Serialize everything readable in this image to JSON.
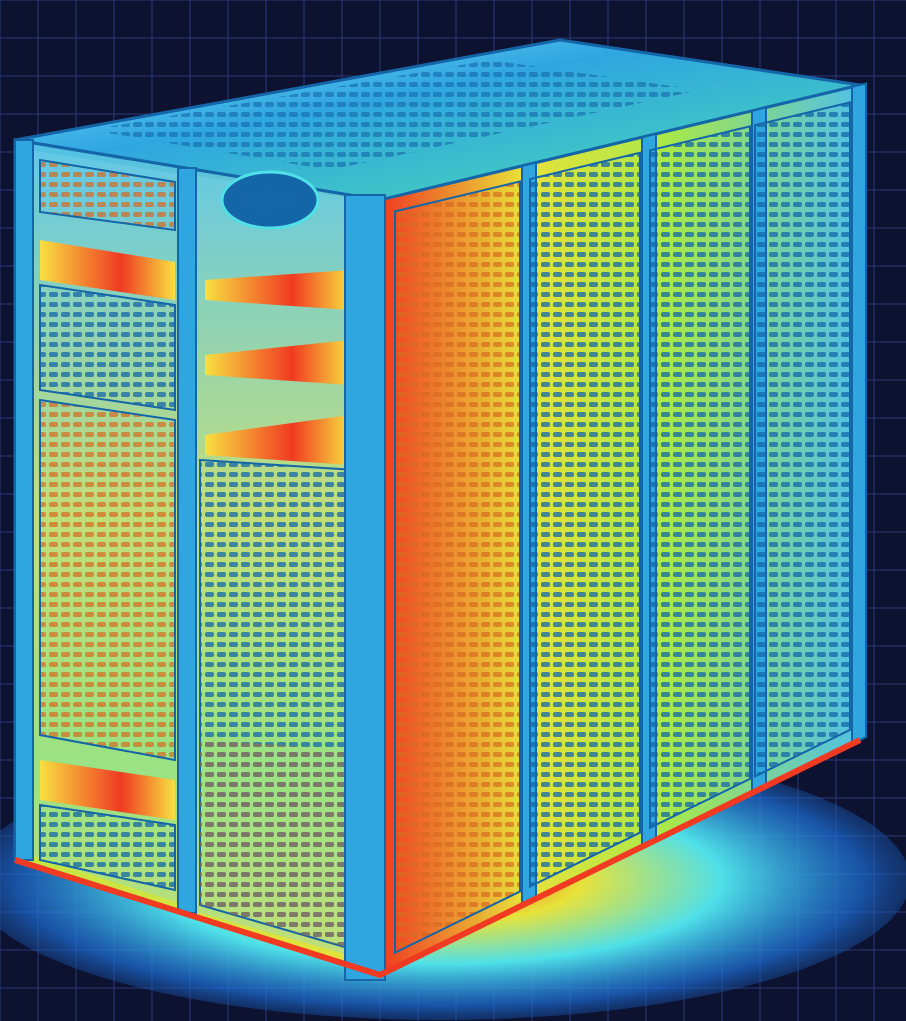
{
  "image": {
    "subject": "thermal-image-server-rack-cabinet",
    "colors": {
      "background": "#0d1230",
      "grid": "#2a3a78",
      "frame": "#2fa6e0",
      "frame_dark": "#1466a8",
      "cool": "#1e8fd8",
      "warm": "#e8e23a",
      "hot": "#f03a22",
      "lime": "#a8e84a",
      "cyan": "#4fe0e8"
    },
    "racks": [
      {
        "id": "front-left-rack"
      },
      {
        "id": "front-center-rack"
      },
      {
        "id": "side-rack-1"
      },
      {
        "id": "side-rack-2"
      },
      {
        "id": "side-rack-3"
      },
      {
        "id": "side-rack-4"
      }
    ]
  }
}
